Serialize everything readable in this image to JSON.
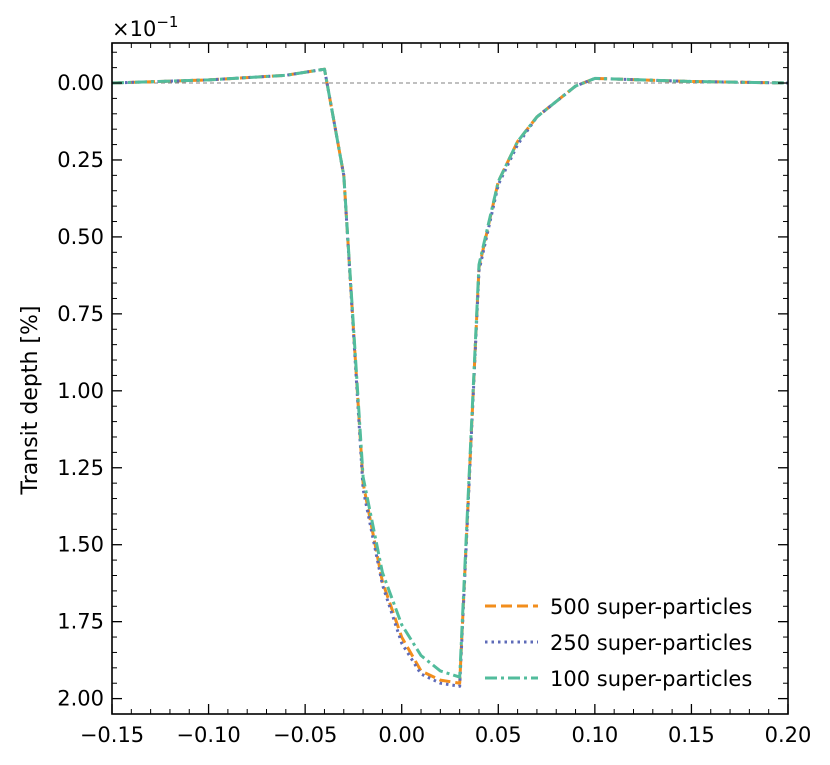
{
  "chart_data": {
    "type": "line",
    "title": "",
    "xlabel": "",
    "ylabel": "Transit depth [%]",
    "y_offset_text": "×10",
    "y_offset_exponent": "−1",
    "xlim": [
      -0.15,
      0.2
    ],
    "ylim": [
      -0.13,
      2.05
    ],
    "y_inverted": true,
    "x_ticks": [
      -0.15,
      -0.1,
      -0.05,
      0.0,
      0.05,
      0.1,
      0.15,
      0.2
    ],
    "x_tick_labels": [
      "−0.15",
      "−0.10",
      "−0.05",
      "0.00",
      "0.05",
      "0.10",
      "0.15",
      "0.20"
    ],
    "y_ticks": [
      0.0,
      0.25,
      0.5,
      0.75,
      1.0,
      1.25,
      1.5,
      1.75,
      2.0
    ],
    "y_tick_labels": [
      "0.00",
      "0.25",
      "0.50",
      "0.75",
      "1.00",
      "1.25",
      "1.50",
      "1.75",
      "2.00"
    ],
    "reference_line": {
      "y": 0.0,
      "color": "#808080",
      "style": "dashed"
    },
    "legend_position": "bottom-right",
    "series": [
      {
        "name": "500 super-particles",
        "color": "#f28e1c",
        "style": "dashed",
        "x": [
          -0.15,
          -0.1,
          -0.06,
          -0.04,
          -0.03,
          -0.02,
          -0.01,
          0.0,
          0.01,
          0.02,
          0.03,
          0.04,
          0.05,
          0.06,
          0.07,
          0.08,
          0.09,
          0.1,
          0.15,
          0.2
        ],
        "y": [
          0.0,
          -0.01,
          -0.025,
          -0.045,
          0.3,
          1.3,
          1.62,
          1.8,
          1.91,
          1.94,
          1.95,
          0.6,
          0.32,
          0.19,
          0.11,
          0.06,
          0.01,
          -0.015,
          -0.005,
          0.0
        ]
      },
      {
        "name": "250 super-particles",
        "color": "#5e6bb8",
        "style": "dotted",
        "x": [
          -0.15,
          -0.1,
          -0.06,
          -0.04,
          -0.03,
          -0.02,
          -0.01,
          0.0,
          0.01,
          0.02,
          0.03,
          0.04,
          0.05,
          0.06,
          0.07,
          0.08,
          0.09,
          0.1,
          0.15,
          0.2
        ],
        "y": [
          0.0,
          -0.01,
          -0.025,
          -0.045,
          0.3,
          1.32,
          1.63,
          1.82,
          1.92,
          1.95,
          1.96,
          0.61,
          0.33,
          0.2,
          0.11,
          0.06,
          0.01,
          -0.015,
          -0.005,
          0.0
        ]
      },
      {
        "name": "100 super-particles",
        "color": "#52bc9c",
        "style": "dashdot",
        "x": [
          -0.15,
          -0.1,
          -0.06,
          -0.04,
          -0.03,
          -0.02,
          -0.01,
          0.0,
          0.01,
          0.02,
          0.03,
          0.04,
          0.05,
          0.06,
          0.07,
          0.08,
          0.09,
          0.1,
          0.15,
          0.2
        ],
        "y": [
          0.0,
          -0.01,
          -0.025,
          -0.045,
          0.3,
          1.28,
          1.59,
          1.76,
          1.86,
          1.91,
          1.93,
          0.59,
          0.32,
          0.19,
          0.11,
          0.06,
          0.01,
          -0.015,
          -0.005,
          0.0
        ]
      }
    ]
  }
}
